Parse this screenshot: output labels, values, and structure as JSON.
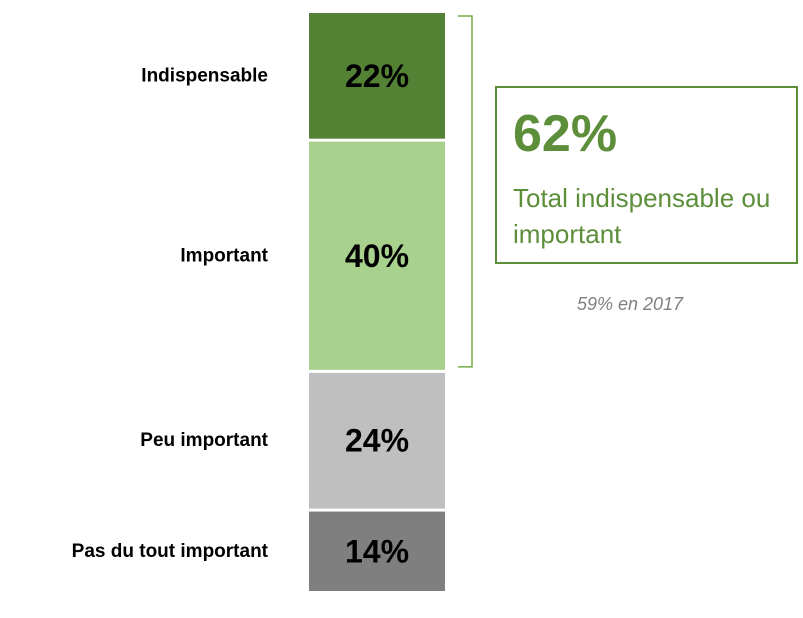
{
  "chart_data": {
    "type": "bar",
    "stacked": true,
    "orientation": "vertical",
    "categories": [
      "Indispensable",
      "Important",
      "Peu important",
      "Pas du tout important"
    ],
    "values": [
      22,
      40,
      24,
      14
    ],
    "value_labels": [
      "22%",
      "40%",
      "24%",
      "14%"
    ],
    "unit": "%",
    "colors": [
      "#548235",
      "#a9d18e",
      "#bfbfbf",
      "#7f7f7f"
    ],
    "segment_separator_color": "#ffffff",
    "ylim": [
      0,
      100
    ]
  },
  "callout": {
    "value": "62%",
    "label": "Total indispensable ou important",
    "accent_color": "#5d8e3a",
    "bracket_color": "#70ad47",
    "covers_categories": [
      "Indispensable",
      "Important"
    ]
  },
  "comparison_note": {
    "text": "59% en 2017",
    "color": "#7f7f7f"
  }
}
